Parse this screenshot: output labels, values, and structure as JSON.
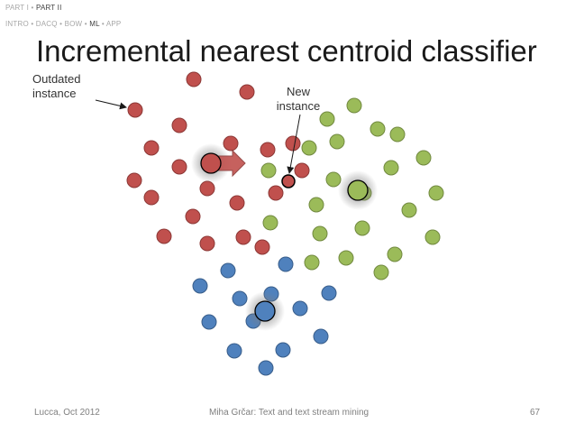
{
  "breadcrumb": {
    "line1": [
      "PART I",
      "PART II"
    ],
    "line1_active": 1,
    "line2": [
      "INTRO",
      "DACQ",
      "BOW",
      "ML",
      "APP"
    ],
    "line2_active": 3,
    "separator": "•"
  },
  "title": "Incremental nearest centroid classifier",
  "annotations": {
    "outdated_line1": "Outdated",
    "outdated_line2": "instance",
    "new_line1": "New",
    "new_line2": "instance"
  },
  "footer": {
    "left": "Lucca, Oct 2012",
    "center": "Miha Grčar: Text and text stream mining",
    "page": "67"
  },
  "colors": {
    "red": "#c0504d",
    "green": "#9bbb59",
    "blue": "#4f81bd",
    "red_stroke": "#8c3836",
    "green_stroke": "#71893f",
    "blue_stroke": "#385d8a"
  }
}
